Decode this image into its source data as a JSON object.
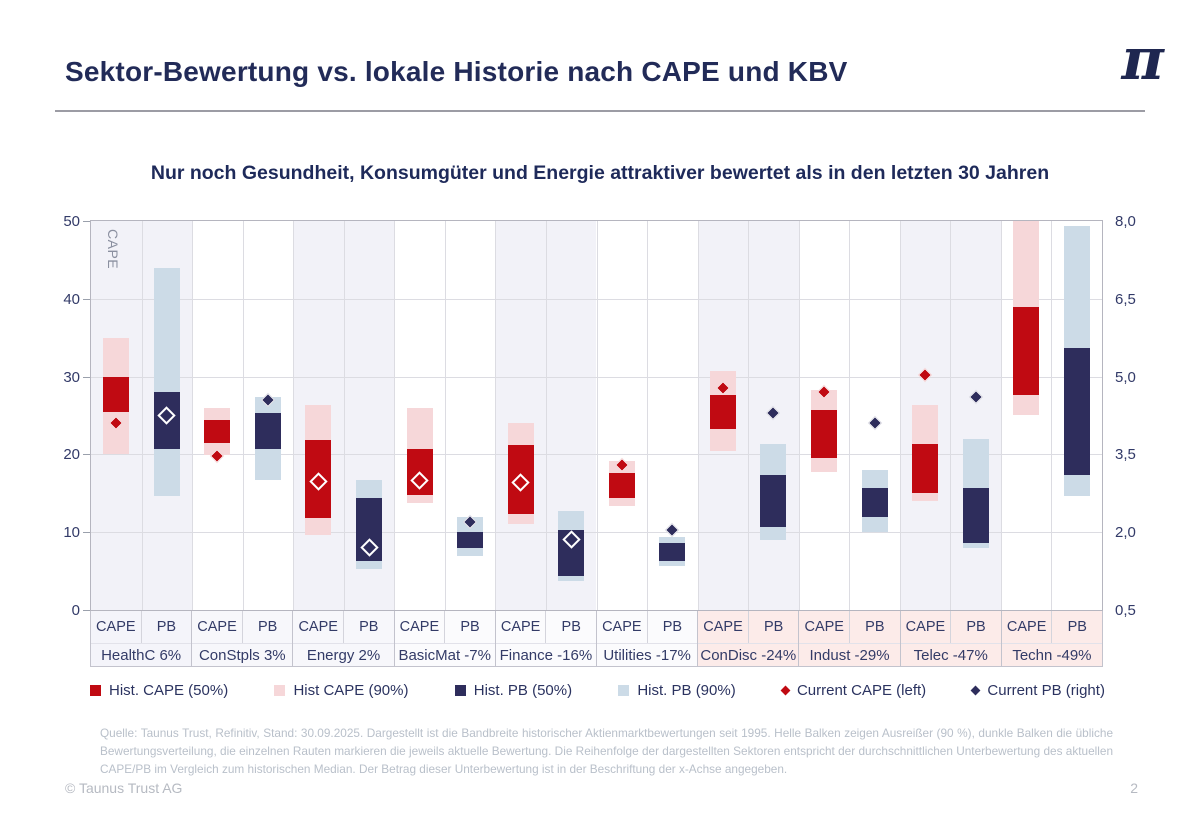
{
  "header": {
    "title": "Sektor-Bewertung vs. lokale Historie nach CAPE und KBV",
    "logo": "π"
  },
  "footer": {
    "copyright": "© Taunus Trust AG",
    "page": "2"
  },
  "footnote": "Quelle: Taunus Trust, Refinitiv, Stand: 30.09.2025. Dargestellt ist die Bandbreite historischer Aktienmarktbewertungen seit 1995. Helle Balken zeigen Ausreißer (90 %), dunkle Balken die übliche Bewertungsverteilung, die einzelnen Rauten markieren die jeweils aktuelle Bewertung. Die Reihenfolge der dargestellten Sektoren entspricht der durchschnittlichen Unterbewertung des aktuellen CAPE/PB im Vergleich zum historischen Median. Der Betrag dieser Unterbewertung ist in der Beschriftung der x-Achse angegeben.",
  "chart_data": {
    "type": "range-bar",
    "title": "Nur noch Gesundheit, Konsumgüter und Energie attraktiver bewertet als in den letzten 30 Jahren",
    "left_axis": {
      "title": "CAPE",
      "ticks": [
        0,
        10,
        20,
        30,
        40,
        50
      ],
      "range": [
        0,
        50
      ]
    },
    "right_axis": {
      "title": "PB",
      "tick_labels": [
        "0,5",
        "2,0",
        "3,5",
        "5,0",
        "6,5",
        "8,0"
      ],
      "tick_values": [
        0.5,
        2.0,
        3.5,
        5.0,
        6.5,
        8.0
      ],
      "range": [
        0.5,
        8.0
      ]
    },
    "column_headers": [
      "CAPE",
      "PB"
    ],
    "grid": true,
    "sectors": [
      {
        "name": "HealthC",
        "pct": "6%",
        "label_bg": "#f4f4fa",
        "cape": {
          "p90": [
            20,
            35
          ],
          "p50": [
            25.5,
            30
          ],
          "current": 24,
          "marker": "filled"
        },
        "pb": {
          "p90": [
            2.7,
            7.1
          ],
          "p50": [
            3.6,
            4.7
          ],
          "current": 4.25,
          "marker": "hollow"
        }
      },
      {
        "name": "ConStpls",
        "pct": "3%",
        "label_bg": "#f7f7fb",
        "cape": {
          "p90": [
            19.9,
            26
          ],
          "p50": [
            21.4,
            24.4
          ],
          "current": 19.8,
          "marker": "filled"
        },
        "pb": {
          "p90": [
            3.0,
            4.6
          ],
          "p50": [
            3.6,
            4.3
          ],
          "current": 4.55,
          "marker": "filled"
        }
      },
      {
        "name": "Energy",
        "pct": "2%",
        "label_bg": "#f7f7fb",
        "cape": {
          "p90": [
            9.7,
            26.3
          ],
          "p50": [
            11.8,
            21.9
          ],
          "current": 16.5,
          "marker": "hollow"
        },
        "pb": {
          "p90": [
            1.3,
            3.0
          ],
          "p50": [
            1.45,
            2.65
          ],
          "current": 1.7,
          "marker": "hollow"
        }
      },
      {
        "name": "BasicMat",
        "pct": "-7%",
        "label_bg": "#fbfbfd",
        "cape": {
          "p90": [
            13.7,
            26
          ],
          "p50": [
            14.8,
            20.7
          ],
          "current": 16.7,
          "marker": "hollow"
        },
        "pb": {
          "p90": [
            1.55,
            2.3
          ],
          "p50": [
            1.7,
            2.0
          ],
          "current": 2.2,
          "marker": "filled"
        }
      },
      {
        "name": "Finance",
        "pct": "-16%",
        "label_bg": "#fbfbfd",
        "cape": {
          "p90": [
            11,
            24.1
          ],
          "p50": [
            12.3,
            21.2
          ],
          "current": 16.4,
          "marker": "hollow"
        },
        "pb": {
          "p90": [
            1.05,
            2.4
          ],
          "p50": [
            1.15,
            2.05
          ],
          "current": 1.85,
          "marker": "hollow"
        }
      },
      {
        "name": "Utilities",
        "pct": "-17%",
        "label_bg": "#fbfbfd",
        "cape": {
          "p90": [
            13.4,
            19.2
          ],
          "p50": [
            14.4,
            17.6
          ],
          "current": 18.7,
          "marker": "filled"
        },
        "pb": {
          "p90": [
            1.35,
            1.9
          ],
          "p50": [
            1.45,
            1.8
          ],
          "current": 2.05,
          "marker": "filled"
        }
      },
      {
        "name": "ConDisc",
        "pct": "-24%",
        "label_bg": "#fcebe9",
        "cape": {
          "p90": [
            20.4,
            30.7
          ],
          "p50": [
            23.3,
            27.6
          ],
          "current": 28.5,
          "marker": "filled"
        },
        "pb": {
          "p90": [
            1.85,
            3.7
          ],
          "p50": [
            2.1,
            3.1
          ],
          "current": 4.3,
          "marker": "filled"
        }
      },
      {
        "name": "Indust",
        "pct": "-29%",
        "label_bg": "#fcebe9",
        "cape": {
          "p90": [
            17.7,
            28.3
          ],
          "p50": [
            19.5,
            25.7
          ],
          "current": 28,
          "marker": "filled"
        },
        "pb": {
          "p90": [
            2.0,
            3.2
          ],
          "p50": [
            2.3,
            2.85
          ],
          "current": 4.1,
          "marker": "filled"
        }
      },
      {
        "name": "Telec",
        "pct": "-47%",
        "label_bg": "#fcebe9",
        "cape": {
          "p90": [
            14,
            26.3
          ],
          "p50": [
            15,
            21.3
          ],
          "current": 30.2,
          "marker": "filled"
        },
        "pb": {
          "p90": [
            1.7,
            3.8
          ],
          "p50": [
            1.8,
            2.85
          ],
          "current": 4.6,
          "marker": "filled"
        }
      },
      {
        "name": "Techn",
        "pct": "-49%",
        "label_bg": "#fcebe9",
        "cape": {
          "p90": [
            25.1,
            50
          ],
          "p50": [
            27.6,
            39
          ],
          "current": null,
          "marker": "filled"
        },
        "pb": {
          "p90": [
            2.7,
            7.9
          ],
          "p50": [
            3.1,
            5.55
          ],
          "current": null,
          "marker": "filled"
        }
      }
    ],
    "legend": [
      {
        "label": "Hist. CAPE (50%)",
        "swatch": "square",
        "color": "cape50"
      },
      {
        "label": "Hist CAPE (90%)",
        "swatch": "square",
        "color": "cape90"
      },
      {
        "label": "Hist. PB (50%)",
        "swatch": "square",
        "color": "pb50"
      },
      {
        "label": "Hist. PB (90%)",
        "swatch": "square",
        "color": "pb90"
      },
      {
        "label": "Current CAPE (left)",
        "swatch": "diamond",
        "color": "cape50"
      },
      {
        "label": "Current PB (right)",
        "swatch": "diamond",
        "color": "pb50"
      }
    ],
    "colors": {
      "cape50": "#c00a12",
      "cape90": "#f6d7d9",
      "pb50": "#2e2d5c",
      "pb90": "#ccdbe7",
      "band": "#f2f2f8",
      "grid": "#dcdce2",
      "border": "#b5b5bf"
    }
  }
}
